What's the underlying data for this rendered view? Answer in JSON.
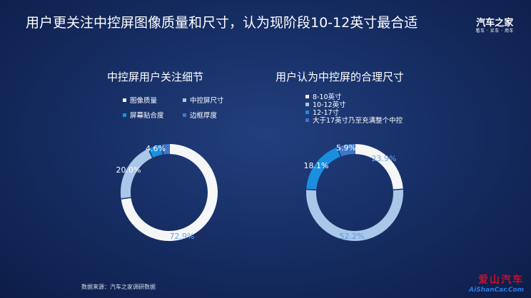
{
  "title": "用户更关注中控屏图像质量和尺寸，认为现阶段10-12英寸最合适",
  "brand": {
    "name": "汽车之家",
    "tagline": "看车 · 买车 · 用车"
  },
  "colors": {
    "white": "#f5f6f8",
    "light_blue": "#a9c7e8",
    "bright_blue": "#1a8fe0",
    "medium_blue": "#3d78c9"
  },
  "chart_data": [
    {
      "type": "pie",
      "title": "中控屏用户关注细节",
      "categories": [
        "图像质量",
        "中控屏尺寸",
        "屏幕贴合度",
        "边框厚度"
      ],
      "values": [
        72.9,
        20.0,
        4.6,
        2.5
      ],
      "labels": [
        "72.9%",
        "20.0%",
        "4.6%",
        ""
      ],
      "colors": [
        "#f5f6f8",
        "#a9c7e8",
        "#1a8fe0",
        "#3d78c9"
      ],
      "legend": "top"
    },
    {
      "type": "pie",
      "title": "用户认为中控屏的合理尺寸",
      "categories": [
        "8-10英寸",
        "10-12英寸",
        "12-17寸",
        "大于17英寸乃至充满整个中控"
      ],
      "values": [
        23.9,
        52.2,
        18.1,
        5.9
      ],
      "labels": [
        "23.9%",
        "52.2%",
        "18.1%",
        "5.9%"
      ],
      "colors": [
        "#f5f6f8",
        "#a9c7e8",
        "#1a8fe0",
        "#3d78c9"
      ],
      "legend": "top"
    }
  ],
  "source": "数据来源：汽车之家调研数据",
  "watermark": {
    "cn": "爱山汽车",
    "en": "AiShanCar.Com"
  }
}
